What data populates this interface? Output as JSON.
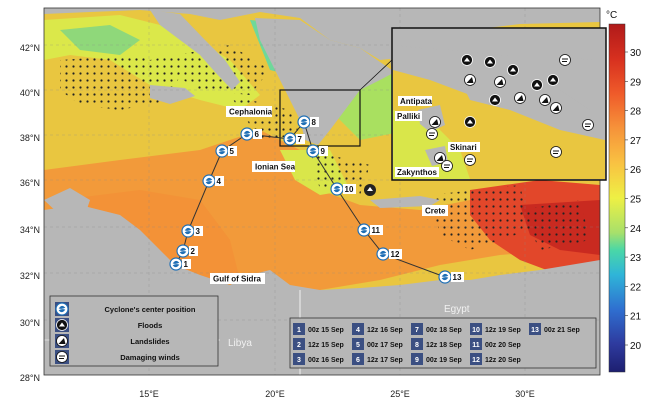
{
  "colorbar": {
    "unit": "°C",
    "ticks": [
      "30",
      "29",
      "28",
      "27",
      "26",
      "25",
      "24",
      "23",
      "22",
      "21",
      "20"
    ],
    "colors": [
      "#b01a1a",
      "#d7301f",
      "#ef5b2a",
      "#f6933a",
      "#f9c242",
      "#eef044",
      "#a7e06b",
      "#4ad7a7",
      "#2fb5d8",
      "#2f6fd0",
      "#2e3a9e",
      "#1d1f70"
    ]
  },
  "axes": {
    "lat_labels": [
      "42°N",
      "40°N",
      "38°N",
      "36°N",
      "34°N",
      "32°N",
      "30°N",
      "28°N"
    ],
    "lon_labels": [
      "15°E",
      "20°E",
      "25°E",
      "30°E"
    ]
  },
  "places": {
    "cephalonia": "Cephalonia",
    "ionian_sea": "Ionian Sea",
    "crete": "Crete",
    "gulf_of_sidra": "Gulf of Sidra",
    "libya": "Libya",
    "egypt": "Egypt"
  },
  "inset_places": {
    "antipata": "Antipata",
    "palliki": "Palliki",
    "skinari": "Skinari",
    "zakynthos": "Zakynthos"
  },
  "track_points": [
    "1",
    "2",
    "3",
    "4",
    "5",
    "6",
    "7",
    "8",
    "9",
    "10",
    "11",
    "12",
    "13"
  ],
  "legend": {
    "items": [
      {
        "label": "Cyclone's center position",
        "icon": "cyclone-icon"
      },
      {
        "label": "Floods",
        "icon": "flood-icon"
      },
      {
        "label": "Landslides",
        "icon": "landslide-icon"
      },
      {
        "label": "Damaging winds",
        "icon": "wind-icon"
      }
    ]
  },
  "time_table": [
    {
      "n": "1",
      "t": "00z 15 Sep"
    },
    {
      "n": "2",
      "t": "12z 15 Sep"
    },
    {
      "n": "3",
      "t": "00z 16 Sep"
    },
    {
      "n": "4",
      "t": "12z 16 Sep"
    },
    {
      "n": "5",
      "t": "00z 17 Sep"
    },
    {
      "n": "6",
      "t": "12z 17 Sep"
    },
    {
      "n": "7",
      "t": "00z 18 Sep"
    },
    {
      "n": "8",
      "t": "12z 18 Sep"
    },
    {
      "n": "9",
      "t": "00z 19 Sep"
    },
    {
      "n": "10",
      "t": "12z 19 Sep"
    },
    {
      "n": "11",
      "t": "00z 20 Sep"
    },
    {
      "n": "12",
      "t": "12z 20 Sep"
    },
    {
      "n": "13",
      "t": "00z 21 Sep"
    }
  ]
}
